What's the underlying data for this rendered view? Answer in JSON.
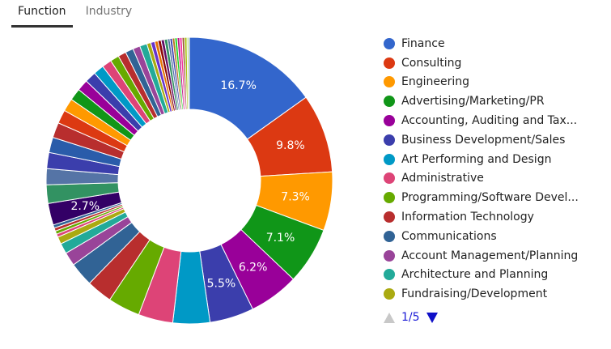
{
  "tabs": [
    {
      "label": "Function",
      "active": true
    },
    {
      "label": "Industry",
      "active": false
    }
  ],
  "pager": {
    "text": "1/5"
  },
  "chart_data": {
    "type": "pie",
    "donut": true,
    "legend_position": "right",
    "categories": [
      "Finance",
      "Consulting",
      "Engineering",
      "Advertising/Marketing/PR",
      "Accounting, Auditing and Tax...",
      "Business Development/Sales",
      "Art Performing and Design",
      "Administrative",
      "Programming/Software Devel...",
      "Information Technology",
      "Communications",
      "Account Management/Planning",
      "Architecture and Planning",
      "Fundraising/Development"
    ],
    "values": [
      16.7,
      9.8,
      7.3,
      7.1,
      6.2,
      5.5,
      4.6,
      4.3,
      4.0,
      3.2,
      3.0,
      1.7,
      1.3,
      0.9
    ],
    "value_labels": [
      "16.7%",
      "9.8%",
      "7.3%",
      "7.1%",
      "6.2%",
      "5.5%",
      "",
      "",
      "",
      "",
      "",
      "",
      "",
      ""
    ],
    "colors": [
      "#3366cc",
      "#dc3912",
      "#ff9900",
      "#109618",
      "#990099",
      "#3b3eac",
      "#0099c6",
      "#dd4477",
      "#66aa00",
      "#b82e2e",
      "#316395",
      "#994499",
      "#22aa99",
      "#aaaa11"
    ],
    "other_slices": {
      "values": [
        0.4,
        0.4,
        0.4,
        0.4,
        2.7,
        2.3,
        2.0,
        2.0,
        1.9,
        1.9,
        1.7,
        1.6,
        1.5,
        1.4,
        1.4,
        1.3,
        1.2,
        1.1,
        1.0,
        1.0,
        0.9,
        0.9,
        0.5,
        0.5,
        0.4,
        0.4,
        0.4,
        0.4,
        0.3,
        0.3,
        0.3,
        0.3,
        0.3,
        0.3,
        0.3,
        0.3,
        0.3
      ],
      "value_labels": [
        "",
        "",
        "",
        "",
        "2.7%",
        "",
        "",
        "",
        "",
        "",
        "",
        "",
        "",
        "",
        "",
        "",
        "",
        "",
        "",
        "",
        "",
        "",
        "",
        "",
        "",
        "",
        "",
        "",
        "",
        "",
        "",
        "",
        "",
        "",
        "",
        "",
        ""
      ],
      "colors": [
        "#dd4477",
        "#66aa00",
        "#b82e2e",
        "#316395",
        "#330066",
        "#329262",
        "#5574a6",
        "#3b3eac",
        "#2a5caa",
        "#b82e2e",
        "#dc3912",
        "#ff9900",
        "#109618",
        "#990099",
        "#3b3eac",
        "#0099c6",
        "#dd4477",
        "#66aa00",
        "#b82e2e",
        "#316395",
        "#994499",
        "#22aa99",
        "#aaaa11",
        "#6633cc",
        "#e67300",
        "#8b0707",
        "#651067",
        "#329262",
        "#5574a6",
        "#3b3eac",
        "#b77322",
        "#16d620",
        "#b91383",
        "#f4359e",
        "#9c5935",
        "#a9c413",
        "#c8e0b0"
      ]
    }
  }
}
